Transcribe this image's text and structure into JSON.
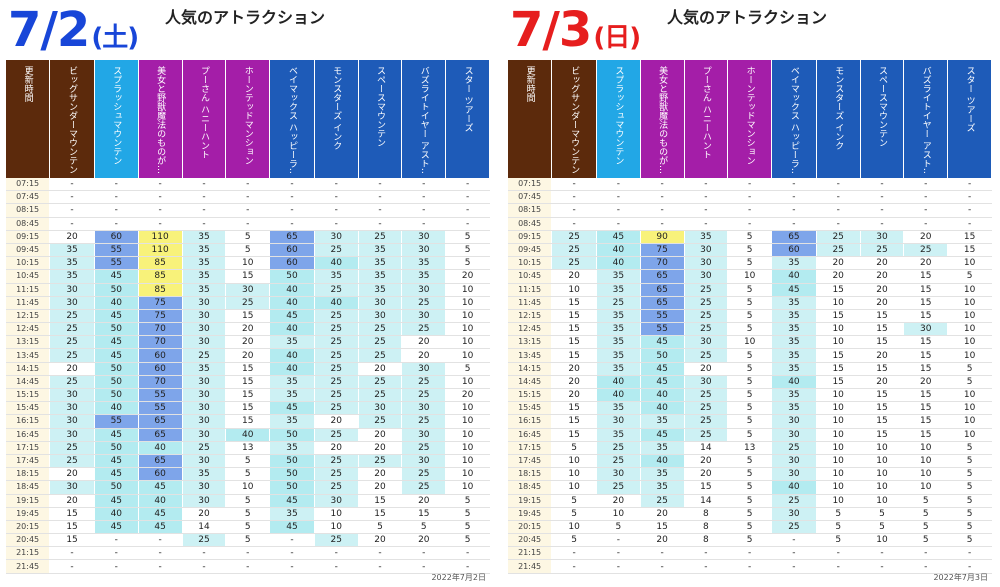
{
  "days": [
    {
      "date": "7/2",
      "weekday": "(土)",
      "date_color": "#1846d8",
      "title": "人気のアトラクション",
      "footer": "2022年7月2日",
      "columns": [
        {
          "label": "更新時間",
          "color": "#5c2a0c"
        },
        {
          "label": "ビッグサンダーマウンテン",
          "color": "#5c2a0c"
        },
        {
          "label": "スプラッシュマウンテン",
          "color": "#22a7e6"
        },
        {
          "label": "美女と野獣魔法のものが…",
          "color": "#a41ea8"
        },
        {
          "label": "プーさん ハニーハント",
          "color": "#a41ea8"
        },
        {
          "label": "ホーンテッドマンション",
          "color": "#a41ea8"
        },
        {
          "label": "ベイマックス ハッピーラ…",
          "color": "#1e5bb8"
        },
        {
          "label": "モンスターズ インク",
          "color": "#1e5bb8"
        },
        {
          "label": "スペースマウンテン",
          "color": "#1e5bb8"
        },
        {
          "label": "バズライトイヤー アスト…",
          "color": "#1e5bb8"
        },
        {
          "label": "スター ツアーズ",
          "color": "#1e5bb8"
        }
      ],
      "rows": [
        [
          "07:15",
          "-",
          "-",
          "-",
          "-",
          "-",
          "-",
          "-",
          "-",
          "-",
          "-"
        ],
        [
          "07:45",
          "-",
          "-",
          "-",
          "-",
          "-",
          "-",
          "-",
          "-",
          "-",
          "-"
        ],
        [
          "08:15",
          "-",
          "-",
          "-",
          "-",
          "-",
          "-",
          "-",
          "-",
          "-",
          "-"
        ],
        [
          "08:45",
          "-",
          "-",
          "-",
          "-",
          "-",
          "-",
          "-",
          "-",
          "-",
          "-"
        ],
        [
          "09:15",
          "20",
          "60",
          "110",
          "35",
          "5",
          "65",
          "30",
          "25",
          "30",
          "5"
        ],
        [
          "09:45",
          "35",
          "55",
          "110",
          "35",
          "5",
          "60",
          "25",
          "35",
          "30",
          "5"
        ],
        [
          "10:15",
          "35",
          "55",
          "85",
          "35",
          "10",
          "60",
          "40",
          "35",
          "35",
          "5"
        ],
        [
          "10:45",
          "35",
          "45",
          "85",
          "35",
          "15",
          "50",
          "35",
          "35",
          "35",
          "20"
        ],
        [
          "11:15",
          "30",
          "50",
          "85",
          "35",
          "30",
          "40",
          "25",
          "35",
          "30",
          "10"
        ],
        [
          "11:45",
          "30",
          "40",
          "75",
          "30",
          "25",
          "40",
          "40",
          "30",
          "25",
          "10"
        ],
        [
          "12:15",
          "25",
          "45",
          "75",
          "30",
          "15",
          "45",
          "25",
          "30",
          "30",
          "10"
        ],
        [
          "12:45",
          "25",
          "50",
          "70",
          "30",
          "20",
          "40",
          "25",
          "25",
          "25",
          "10"
        ],
        [
          "13:15",
          "25",
          "45",
          "70",
          "30",
          "20",
          "35",
          "25",
          "25",
          "20",
          "10"
        ],
        [
          "13:45",
          "25",
          "45",
          "60",
          "25",
          "20",
          "40",
          "25",
          "25",
          "20",
          "10"
        ],
        [
          "14:15",
          "20",
          "50",
          "60",
          "35",
          "15",
          "40",
          "25",
          "20",
          "30",
          "5"
        ],
        [
          "14:45",
          "25",
          "50",
          "70",
          "30",
          "15",
          "35",
          "25",
          "25",
          "25",
          "10"
        ],
        [
          "15:15",
          "30",
          "50",
          "55",
          "30",
          "15",
          "35",
          "25",
          "25",
          "25",
          "20"
        ],
        [
          "15:45",
          "30",
          "40",
          "55",
          "30",
          "15",
          "45",
          "25",
          "30",
          "30",
          "10"
        ],
        [
          "16:15",
          "30",
          "55",
          "65",
          "30",
          "15",
          "35",
          "20",
          "25",
          "25",
          "10"
        ],
        [
          "16:45",
          "30",
          "45",
          "65",
          "30",
          "40",
          "50",
          "25",
          "20",
          "30",
          "10"
        ],
        [
          "17:15",
          "25",
          "50",
          "40",
          "25",
          "13",
          "35",
          "20",
          "20",
          "25",
          "10"
        ],
        [
          "17:45",
          "25",
          "45",
          "65",
          "30",
          "5",
          "50",
          "25",
          "25",
          "30",
          "10"
        ],
        [
          "18:15",
          "20",
          "45",
          "60",
          "35",
          "5",
          "50",
          "25",
          "20",
          "25",
          "10"
        ],
        [
          "18:45",
          "30",
          "50",
          "45",
          "30",
          "10",
          "50",
          "25",
          "20",
          "25",
          "10"
        ],
        [
          "19:15",
          "20",
          "45",
          "40",
          "30",
          "5",
          "45",
          "30",
          "15",
          "20",
          "5"
        ],
        [
          "19:45",
          "15",
          "40",
          "45",
          "20",
          "5",
          "35",
          "10",
          "15",
          "15",
          "5"
        ],
        [
          "20:15",
          "15",
          "45",
          "45",
          "14",
          "5",
          "45",
          "10",
          "5",
          "5",
          "5"
        ],
        [
          "20:45",
          "15",
          "-",
          "-",
          "25",
          "5",
          "-",
          "25",
          "20",
          "20",
          "5"
        ],
        [
          "21:15",
          "-",
          "-",
          "-",
          "-",
          "-",
          "-",
          "-",
          "-",
          "-",
          "-"
        ],
        [
          "21:45",
          "-",
          "-",
          "-",
          "-",
          "-",
          "-",
          "-",
          "-",
          "-",
          "-"
        ]
      ]
    },
    {
      "date": "7/3",
      "weekday": "(日)",
      "date_color": "#e61e1e",
      "title": "人気のアトラクション",
      "footer": "2022年7月3日",
      "columns": [
        {
          "label": "更新時間",
          "color": "#5c2a0c"
        },
        {
          "label": "ビッグサンダーマウンテン",
          "color": "#5c2a0c"
        },
        {
          "label": "スプラッシュマウンテン",
          "color": "#22a7e6"
        },
        {
          "label": "美女と野獣魔法のものが…",
          "color": "#a41ea8"
        },
        {
          "label": "プーさん ハニーハント",
          "color": "#a41ea8"
        },
        {
          "label": "ホーンテッドマンション",
          "color": "#a41ea8"
        },
        {
          "label": "ベイマックス ハッピーラ…",
          "color": "#1e5bb8"
        },
        {
          "label": "モンスターズ インク",
          "color": "#1e5bb8"
        },
        {
          "label": "スペースマウンテン",
          "color": "#1e5bb8"
        },
        {
          "label": "バズライトイヤー アスト…",
          "color": "#1e5bb8"
        },
        {
          "label": "スター ツアーズ",
          "color": "#1e5bb8"
        }
      ],
      "rows": [
        [
          "07:15",
          "-",
          "-",
          "-",
          "-",
          "-",
          "-",
          "-",
          "-",
          "-",
          "-"
        ],
        [
          "07:45",
          "-",
          "-",
          "-",
          "-",
          "-",
          "-",
          "-",
          "-",
          "-",
          "-"
        ],
        [
          "08:15",
          "-",
          "-",
          "-",
          "-",
          "-",
          "-",
          "-",
          "-",
          "-",
          "-"
        ],
        [
          "08:45",
          "-",
          "-",
          "-",
          "-",
          "-",
          "-",
          "-",
          "-",
          "-",
          "-"
        ],
        [
          "09:15",
          "25",
          "45",
          "90",
          "35",
          "5",
          "65",
          "25",
          "30",
          "20",
          "15"
        ],
        [
          "09:45",
          "25",
          "40",
          "75",
          "30",
          "5",
          "60",
          "25",
          "25",
          "25",
          "15"
        ],
        [
          "10:15",
          "25",
          "40",
          "70",
          "30",
          "5",
          "35",
          "20",
          "20",
          "20",
          "10"
        ],
        [
          "10:45",
          "20",
          "35",
          "65",
          "30",
          "10",
          "40",
          "20",
          "20",
          "15",
          "5"
        ],
        [
          "11:15",
          "10",
          "35",
          "65",
          "25",
          "5",
          "45",
          "15",
          "20",
          "15",
          "10"
        ],
        [
          "11:45",
          "15",
          "25",
          "65",
          "25",
          "5",
          "35",
          "10",
          "20",
          "15",
          "10"
        ],
        [
          "12:15",
          "15",
          "35",
          "55",
          "25",
          "5",
          "35",
          "15",
          "15",
          "15",
          "10"
        ],
        [
          "12:45",
          "15",
          "35",
          "55",
          "25",
          "5",
          "35",
          "10",
          "15",
          "30",
          "10"
        ],
        [
          "13:15",
          "15",
          "35",
          "45",
          "30",
          "10",
          "35",
          "10",
          "15",
          "15",
          "10"
        ],
        [
          "13:45",
          "15",
          "35",
          "50",
          "25",
          "5",
          "35",
          "15",
          "20",
          "15",
          "10"
        ],
        [
          "14:15",
          "20",
          "35",
          "45",
          "20",
          "5",
          "35",
          "15",
          "15",
          "15",
          "5"
        ],
        [
          "14:45",
          "20",
          "40",
          "45",
          "30",
          "5",
          "40",
          "15",
          "20",
          "20",
          "5"
        ],
        [
          "15:15",
          "20",
          "40",
          "40",
          "25",
          "5",
          "35",
          "10",
          "15",
          "15",
          "10"
        ],
        [
          "15:45",
          "15",
          "35",
          "40",
          "25",
          "5",
          "35",
          "10",
          "15",
          "15",
          "10"
        ],
        [
          "16:15",
          "15",
          "30",
          "35",
          "25",
          "5",
          "30",
          "10",
          "15",
          "15",
          "10"
        ],
        [
          "16:45",
          "15",
          "35",
          "45",
          "25",
          "5",
          "30",
          "10",
          "15",
          "15",
          "10"
        ],
        [
          "17:15",
          "5",
          "25",
          "35",
          "14",
          "13",
          "25",
          "10",
          "10",
          "10",
          "5"
        ],
        [
          "17:45",
          "10",
          "25",
          "40",
          "20",
          "5",
          "30",
          "10",
          "10",
          "10",
          "5"
        ],
        [
          "18:15",
          "10",
          "30",
          "35",
          "20",
          "5",
          "30",
          "10",
          "10",
          "10",
          "5"
        ],
        [
          "18:45",
          "10",
          "25",
          "35",
          "15",
          "5",
          "40",
          "10",
          "10",
          "10",
          "5"
        ],
        [
          "19:15",
          "5",
          "20",
          "25",
          "14",
          "5",
          "25",
          "10",
          "10",
          "5",
          "5"
        ],
        [
          "19:45",
          "5",
          "10",
          "20",
          "8",
          "5",
          "30",
          "5",
          "5",
          "5",
          "5"
        ],
        [
          "20:15",
          "10",
          "5",
          "15",
          "8",
          "5",
          "25",
          "5",
          "5",
          "5",
          "5"
        ],
        [
          "20:45",
          "5",
          "-",
          "20",
          "8",
          "5",
          "-",
          "5",
          "10",
          "5",
          "5"
        ],
        [
          "21:15",
          "-",
          "-",
          "-",
          "-",
          "-",
          "-",
          "-",
          "-",
          "-",
          "-"
        ],
        [
          "21:45",
          "-",
          "-",
          "-",
          "-",
          "-",
          "-",
          "-",
          "-",
          "-",
          "-"
        ]
      ]
    }
  ],
  "heat_colors": {
    "none": "#ffffff",
    "low": "#cdf1f4",
    "mid": "#b3ebf0",
    "high": "#7ea5ea",
    "top": "#f8f27a"
  }
}
